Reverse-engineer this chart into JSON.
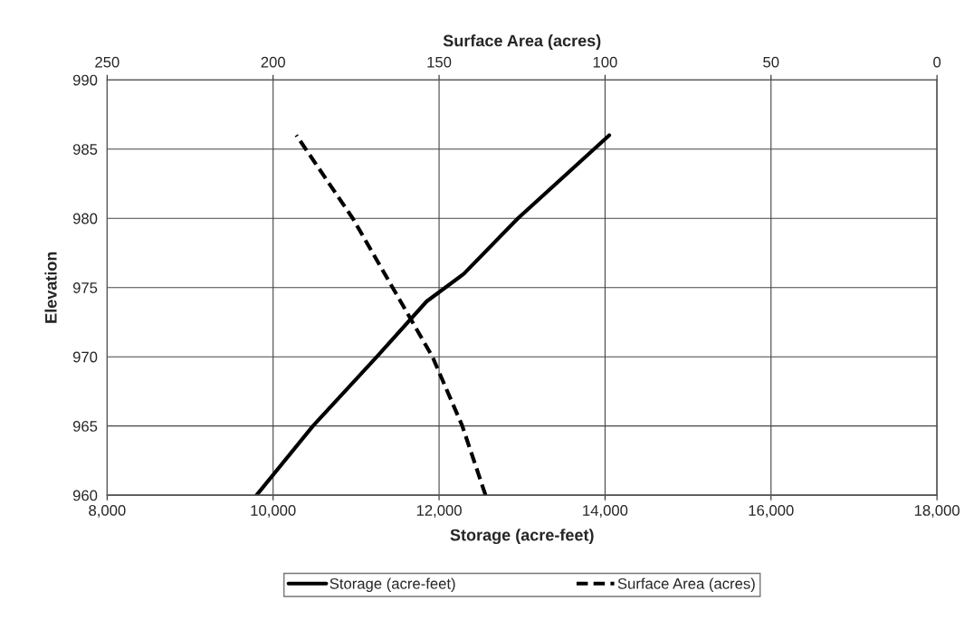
{
  "chart_data": {
    "type": "line",
    "xlabel": "Storage (acre-feet)",
    "x2label": "Surface Area (acres)",
    "ylabel": "Elevation",
    "xlim": [
      8000,
      18000
    ],
    "xticks": [
      {
        "value": 8000,
        "label": "8,000"
      },
      {
        "value": 10000,
        "label": "10,000"
      },
      {
        "value": 12000,
        "label": "12,000"
      },
      {
        "value": 14000,
        "label": "14,000"
      },
      {
        "value": 16000,
        "label": "16,000"
      },
      {
        "value": 18000,
        "label": "18,000"
      }
    ],
    "x2lim": [
      250,
      0
    ],
    "x2ticks": [
      250,
      200,
      150,
      100,
      50,
      0
    ],
    "ylim": [
      960,
      990
    ],
    "yticks": [
      960,
      965,
      970,
      975,
      980,
      985,
      990
    ],
    "grid": true,
    "legend": "bottom",
    "series": [
      {
        "name": "Storage (acre-feet)",
        "color": "#000000",
        "line_style": "solid",
        "x": [
          9800,
          10480,
          11250,
          11850,
          12300,
          12950,
          14050
        ],
        "values": [
          960,
          965,
          970,
          974,
          976,
          980,
          986
        ]
      },
      {
        "name": "Surface Area (acres)",
        "color": "#000000",
        "line_style": "dashed",
        "axis": "x2",
        "x": [
          136,
          143,
          152,
          164,
          176,
          193
        ],
        "values": [
          960,
          965,
          970,
          975,
          980,
          986
        ]
      }
    ]
  }
}
